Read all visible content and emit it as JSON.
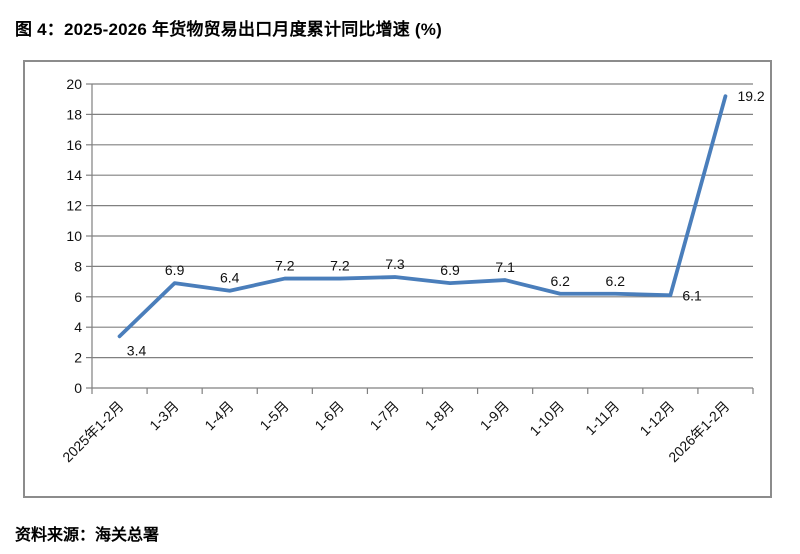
{
  "figure": {
    "title": "图 4：2025-2026 年货物贸易出口月度累计同比增速 (%)",
    "source": "资料来源：海关总署"
  },
  "chart_data": {
    "type": "line",
    "title": "图 4：2025-2026 年货物贸易出口月度累计同比增速 (%)",
    "categories": [
      "2025年1-2月",
      "1-3月",
      "1-4月",
      "1-5月",
      "1-6月",
      "1-7月",
      "1-8月",
      "1-9月",
      "1-10月",
      "1-11月",
      "1-12月",
      "2026年1-2月"
    ],
    "values": [
      3.4,
      6.9,
      6.4,
      7.2,
      7.2,
      7.3,
      6.9,
      7.1,
      6.2,
      6.2,
      6.1,
      19.2
    ],
    "data_labels": [
      "3.4",
      "6.9",
      "6.4",
      "7.2",
      "7.2",
      "7.3",
      "6.9",
      "7.1",
      "6.2",
      "6.2",
      "6.1",
      "19.2"
    ],
    "label_positions": [
      "below",
      "above",
      "above",
      "above",
      "above",
      "above",
      "above",
      "above",
      "above",
      "above",
      "right",
      "right"
    ],
    "xlabel": "",
    "ylabel": "",
    "ylim": [
      0,
      20
    ],
    "ytick_step": 2,
    "yticks": [
      0,
      2,
      4,
      6,
      8,
      10,
      12,
      14,
      16,
      18,
      20
    ],
    "grid": true,
    "legend": false,
    "x_label_rotation_deg": -45,
    "line_color": "#4a7ebb",
    "axis_color": "#808080",
    "grid_color": "#808080",
    "text_color": "#111111"
  }
}
